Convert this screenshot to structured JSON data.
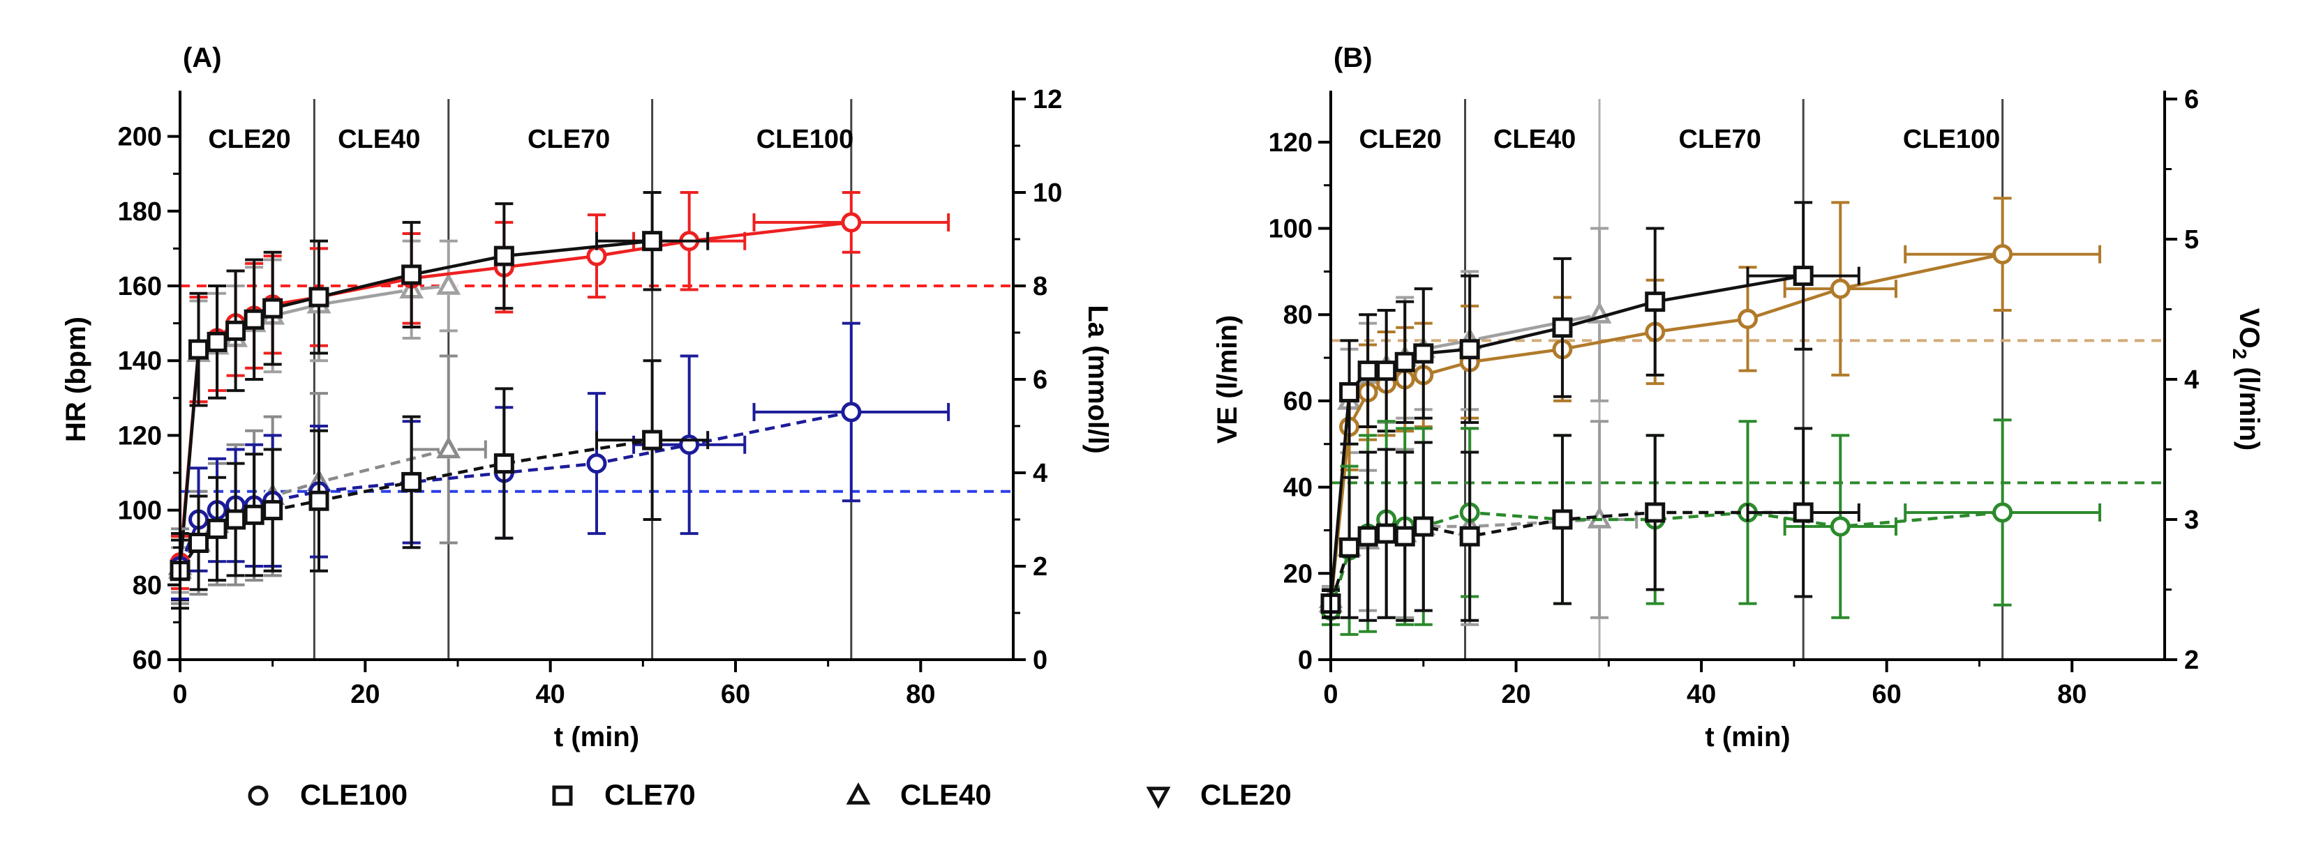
{
  "figure": {
    "legend": [
      {
        "marker": "circle",
        "label": "CLE100"
      },
      {
        "marker": "square",
        "label": "CLE70"
      },
      {
        "marker": "triangle-up",
        "label": "CLE40"
      },
      {
        "marker": "triangle-down",
        "label": "CLE20"
      }
    ]
  },
  "chart_data": [
    {
      "type": "line",
      "panel_label": "(A)",
      "xlabel": "t (min)",
      "ylabel": "HR (bpm)",
      "y2label": "La (mmol/l)",
      "xlim": [
        0,
        90
      ],
      "ylim": [
        60,
        210
      ],
      "y2lim": [
        0,
        12
      ],
      "x_ticks": [
        0,
        20,
        40,
        60,
        80
      ],
      "y_ticks": [
        60,
        80,
        100,
        120,
        140,
        160,
        180,
        200
      ],
      "y2_ticks": [
        0,
        2,
        4,
        6,
        8,
        10,
        12
      ],
      "stage_labels": [
        {
          "label": "CLE20",
          "x": 7.5
        },
        {
          "label": "CLE40",
          "x": 21.5
        },
        {
          "label": "CLE70",
          "x": 42
        },
        {
          "label": "CLE100",
          "x": 67.5
        }
      ],
      "stage_lines": [
        {
          "x": 14.5,
          "color": "#444444"
        },
        {
          "x": 29,
          "color": "#444444"
        },
        {
          "x": 51,
          "color": "#444444"
        },
        {
          "x": 72.5,
          "color": "#444444"
        }
      ],
      "threshold_lines": [
        {
          "axis": "left",
          "y": 160,
          "color": "#ff2020"
        },
        {
          "axis": "right",
          "y": 3.6,
          "color": "#2a3ee8"
        }
      ],
      "series": [
        {
          "name": "HR CLE40",
          "axis": "left",
          "marker": "triangle-up",
          "color": "#a0a0a0",
          "dash": false,
          "x": [
            0,
            2,
            4,
            6,
            8,
            10,
            15,
            25,
            29
          ],
          "y": [
            84,
            142,
            144,
            146,
            150,
            152,
            155,
            159,
            160
          ],
          "err": [
            6,
            14,
            14,
            14,
            15,
            15,
            15,
            13,
            12
          ]
        },
        {
          "name": "HR CLE100",
          "axis": "left",
          "marker": "circle",
          "color": "#ee2020",
          "dash": false,
          "x": [
            0,
            2,
            4,
            6,
            8,
            10,
            15,
            25,
            35,
            45,
            55,
            72.5
          ],
          "y": [
            86,
            143,
            146,
            150,
            152,
            155,
            157,
            162,
            165,
            168,
            172,
            177
          ],
          "err": [
            7,
            14,
            14,
            14,
            14,
            13,
            13,
            12,
            12,
            11,
            13,
            8
          ],
          "xerr": [
            0,
            0,
            0,
            0,
            0,
            0,
            0,
            0,
            0,
            0,
            6,
            10.5
          ]
        },
        {
          "name": "HR CLE70",
          "axis": "left",
          "marker": "square",
          "color": "#111111",
          "dash": false,
          "x": [
            0,
            2,
            4,
            6,
            8,
            10,
            15,
            25,
            35,
            51
          ],
          "y": [
            84,
            143,
            145,
            148,
            151,
            154,
            157,
            163,
            168,
            172
          ],
          "err": [
            8,
            15,
            15,
            16,
            16,
            15,
            15,
            14,
            14,
            13
          ],
          "xerr": [
            0,
            0,
            0,
            0,
            0,
            0,
            0,
            0,
            0,
            6
          ]
        },
        {
          "name": "La CLE40",
          "axis": "right",
          "marker": "triangle-up",
          "color": "#8a8a8a",
          "dash": true,
          "x": [
            0,
            2,
            4,
            6,
            8,
            10,
            15,
            29
          ],
          "y": [
            2.0,
            2.5,
            2.9,
            3.1,
            3.3,
            3.5,
            3.8,
            4.5
          ],
          "err": [
            0.8,
            1.1,
            1.3,
            1.5,
            1.6,
            1.7,
            1.9,
            2.0
          ],
          "xerr": [
            0,
            0,
            0,
            0,
            0,
            0,
            0,
            4
          ]
        },
        {
          "name": "La CLE100",
          "axis": "right",
          "marker": "circle",
          "color": "#1c1c9a",
          "dash": true,
          "x": [
            0,
            2,
            4,
            6,
            8,
            10,
            15,
            25,
            35,
            45,
            55,
            72.5
          ],
          "y": [
            2.0,
            3.0,
            3.2,
            3.3,
            3.3,
            3.4,
            3.6,
            3.8,
            4.0,
            4.2,
            4.6,
            5.3
          ],
          "err": [
            0.7,
            1.1,
            1.1,
            1.2,
            1.3,
            1.4,
            1.4,
            1.3,
            1.4,
            1.5,
            1.9,
            1.9
          ],
          "xerr": [
            0,
            0,
            0,
            0,
            0,
            0,
            0,
            0,
            0,
            0,
            6,
            10.5
          ]
        },
        {
          "name": "La CLE70",
          "axis": "right",
          "marker": "square",
          "color": "#111111",
          "dash": true,
          "x": [
            0,
            2,
            4,
            6,
            8,
            10,
            15,
            25,
            35,
            51
          ],
          "y": [
            1.9,
            2.5,
            2.8,
            3.0,
            3.1,
            3.2,
            3.4,
            3.8,
            4.2,
            4.7
          ],
          "err": [
            0.8,
            1.0,
            1.1,
            1.2,
            1.3,
            1.3,
            1.5,
            1.4,
            1.6,
            1.7
          ],
          "xerr": [
            0,
            0,
            0,
            0,
            0,
            0,
            0,
            0,
            0,
            6
          ]
        }
      ]
    },
    {
      "type": "line",
      "panel_label": "(B)",
      "xlabel": "t (min)",
      "ylabel": "VE (l/min)",
      "y2label": "VO",
      "y2label_sub": "2",
      "y2label_unit": " (l/min)",
      "xlim": [
        0,
        90
      ],
      "ylim": [
        0,
        130
      ],
      "y2lim": [
        2,
        6
      ],
      "x_ticks": [
        0,
        20,
        40,
        60,
        80
      ],
      "y_ticks": [
        0,
        20,
        40,
        60,
        80,
        100,
        120
      ],
      "y2_ticks": [
        2,
        3,
        4,
        5,
        6
      ],
      "stage_labels": [
        {
          "label": "CLE20",
          "x": 7.5
        },
        {
          "label": "CLE40",
          "x": 22
        },
        {
          "label": "CLE70",
          "x": 42
        },
        {
          "label": "CLE100",
          "x": 67
        }
      ],
      "stage_lines": [
        {
          "x": 14.5,
          "color": "#444444"
        },
        {
          "x": 29,
          "color": "#b0b0b0"
        },
        {
          "x": 51,
          "color": "#444444"
        },
        {
          "x": 72.5,
          "color": "#444444"
        }
      ],
      "threshold_lines": [
        {
          "axis": "left",
          "y": 74,
          "color": "#d2aa78"
        },
        {
          "axis": "left",
          "y": 41,
          "color": "#2e8a2e"
        }
      ],
      "series": [
        {
          "name": "VE CLE40",
          "axis": "left",
          "marker": "triangle-up",
          "color": "#a0a0a0",
          "dash": false,
          "x": [
            0,
            2,
            4,
            6,
            8,
            10,
            15,
            29
          ],
          "y": [
            14,
            60,
            66,
            68,
            70,
            72,
            74,
            80
          ],
          "err": [
            3,
            12,
            12,
            13,
            14,
            14,
            16,
            20
          ]
        },
        {
          "name": "VE CLE100",
          "axis": "left",
          "marker": "circle",
          "color": "#b07a2a",
          "dash": false,
          "x": [
            0,
            2,
            4,
            6,
            8,
            10,
            15,
            25,
            35,
            45,
            55,
            72.5
          ],
          "y": [
            13,
            54,
            62,
            64,
            65,
            66,
            69,
            72,
            76,
            79,
            86,
            94
          ],
          "err": [
            3,
            10,
            11,
            12,
            12,
            12,
            13,
            12,
            12,
            12,
            20,
            13
          ],
          "xerr": [
            0,
            0,
            0,
            0,
            0,
            0,
            0,
            0,
            0,
            0,
            6,
            10.5
          ]
        },
        {
          "name": "VE CLE70",
          "axis": "left",
          "marker": "square",
          "color": "#111111",
          "dash": false,
          "x": [
            0,
            2,
            4,
            6,
            8,
            10,
            15,
            25,
            35,
            51
          ],
          "y": [
            13,
            62,
            67,
            67,
            69,
            71,
            72,
            77,
            83,
            89
          ],
          "err": [
            3,
            12,
            13,
            14,
            14,
            15,
            17,
            16,
            17,
            17
          ],
          "xerr": [
            0,
            0,
            0,
            0,
            0,
            0,
            0,
            0,
            0,
            6
          ]
        },
        {
          "name": "VO2 CLE40",
          "axis": "right",
          "marker": "triangle-up",
          "color": "#9a9a9a",
          "dash": true,
          "x": [
            0,
            2,
            4,
            6,
            8,
            10,
            15,
            29
          ],
          "y": [
            2.4,
            2.8,
            2.85,
            2.9,
            2.9,
            2.95,
            2.95,
            3.0
          ],
          "err": [
            0.1,
            0.5,
            0.5,
            0.6,
            0.6,
            0.6,
            0.7,
            0.7
          ],
          "xerr": [
            0,
            0,
            0,
            0,
            0,
            0,
            0,
            4
          ]
        },
        {
          "name": "VO2 CLE100",
          "axis": "right",
          "marker": "circle",
          "color": "#2c8a2c",
          "dash": true,
          "x": [
            0,
            2,
            4,
            6,
            8,
            10,
            15,
            25,
            35,
            45,
            55,
            72.5
          ],
          "y": [
            2.35,
            2.78,
            2.9,
            3.0,
            2.95,
            2.95,
            3.05,
            3.0,
            3.0,
            3.05,
            2.95,
            3.05
          ],
          "err": [
            0.1,
            0.6,
            0.7,
            0.7,
            0.7,
            0.7,
            0.6,
            0.6,
            0.6,
            0.65,
            0.65,
            0.66
          ],
          "xerr": [
            0,
            0,
            0,
            0,
            0,
            0,
            0,
            0,
            0,
            0,
            6,
            10.5
          ]
        },
        {
          "name": "VO2 CLE70",
          "axis": "right",
          "marker": "square",
          "color": "#111111",
          "dash": true,
          "x": [
            0,
            2,
            4,
            6,
            8,
            10,
            15,
            25,
            35,
            51
          ],
          "y": [
            2.4,
            2.8,
            2.88,
            2.9,
            2.88,
            2.95,
            2.88,
            3.0,
            3.05,
            3.05
          ],
          "err": [
            0.1,
            0.5,
            0.6,
            0.6,
            0.6,
            0.6,
            0.6,
            0.6,
            0.55,
            0.6
          ],
          "xerr": [
            0,
            0,
            0,
            0,
            0,
            0,
            0,
            0,
            0,
            6
          ]
        }
      ]
    }
  ]
}
